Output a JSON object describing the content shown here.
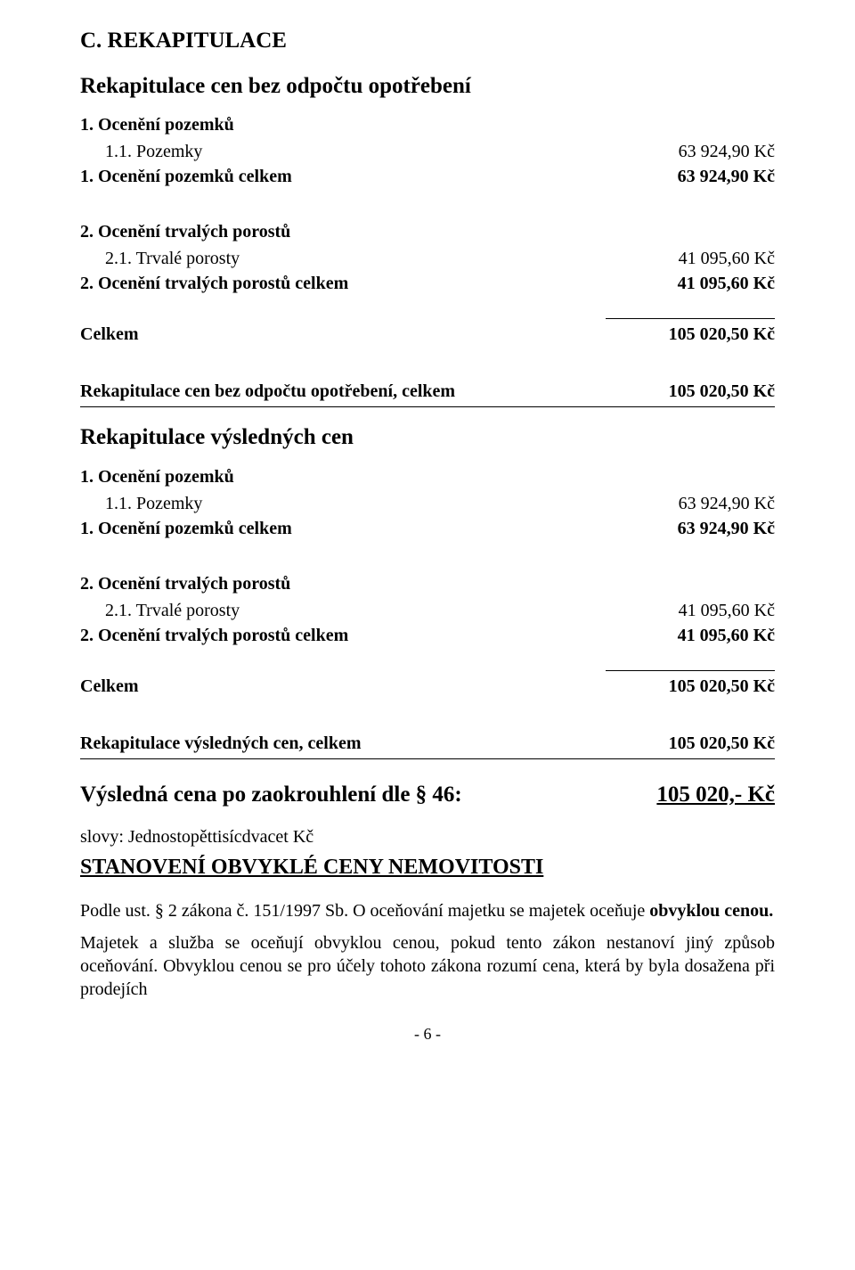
{
  "title": "C. REKAPITULACE",
  "section1": {
    "heading": "Rekapitulace cen bez odpočtu opotřebení",
    "g1_heading": "1. Ocenění pozemků",
    "g1_item_lbl": "1.1. Pozemky",
    "g1_item_val": "63 924,90 Kč",
    "g1_total_lbl": "1. Ocenění pozemků celkem",
    "g1_total_val": "63 924,90 Kč",
    "g2_heading": "2. Ocenění trvalých porostů",
    "g2_item_lbl": "2.1. Trvalé porosty",
    "g2_item_val": "41 095,60 Kč",
    "g2_total_lbl": "2. Ocenění trvalých porostů celkem",
    "g2_total_val": "41 095,60 Kč",
    "celkem_lbl": "Celkem",
    "celkem_val": "105 020,50 Kč",
    "summary_lbl": "Rekapitulace cen bez odpočtu opotřebení, celkem",
    "summary_val": "105 020,50 Kč"
  },
  "section2": {
    "heading": "Rekapitulace výsledných cen",
    "g1_heading": "1. Ocenění pozemků",
    "g1_item_lbl": "1.1. Pozemky",
    "g1_item_val": "63 924,90 Kč",
    "g1_total_lbl": "1. Ocenění pozemků celkem",
    "g1_total_val": "63 924,90 Kč",
    "g2_heading": "2. Ocenění trvalých porostů",
    "g2_item_lbl": "2.1. Trvalé porosty",
    "g2_item_val": "41 095,60 Kč",
    "g2_total_lbl": "2. Ocenění trvalých porostů celkem",
    "g2_total_val": "41 095,60 Kč",
    "celkem_lbl": "Celkem",
    "celkem_val": "105 020,50 Kč",
    "summary_lbl": "Rekapitulace výsledných cen, celkem",
    "summary_val": "105 020,50 Kč"
  },
  "result": {
    "lbl": "Výsledná cena po zaokrouhlení dle § 46:",
    "val": "105 020,- Kč"
  },
  "slovy": "slovy: Jednostopěttisícdvacet Kč",
  "stanoveni": "STANOVENÍ OBVYKLÉ CENY NEMOVITOSTI",
  "para1": "Podle ust. § 2 zákona č. 151/1997 Sb. O oceňování majetku se majetek oceňuje obvyklou cenou.",
  "para2": "Majetek a služba se oceňují obvyklou cenou, pokud tento zákon nestanoví jiný způsob oceňování. Obvyklou cenou se pro účely tohoto zákona rozumí cena, která by byla dosažena při prodejích",
  "footer": "- 6 -",
  "para1_html": "Podle ust. § 2 zákona č. 151/1997 Sb. O oceňování majetku se majetek oceňuje <b>obvyklou cenou.</b>"
}
